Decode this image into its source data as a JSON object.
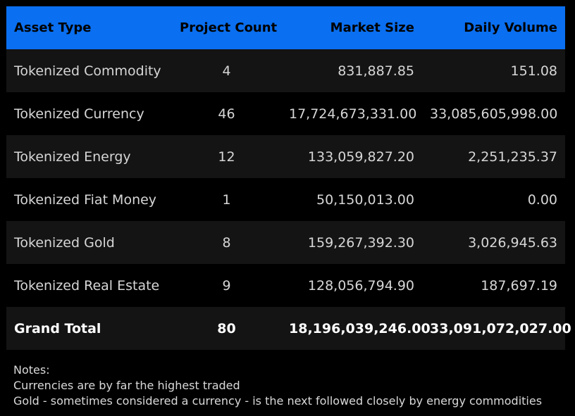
{
  "chart_data": {
    "type": "table",
    "columns": [
      "Asset Type",
      "Project Count",
      "Market Size",
      "Daily Volume"
    ],
    "rows": [
      {
        "asset_type": "Tokenized Commodity",
        "project_count": "4",
        "market_size": "831,887.85",
        "daily_volume": "151.08"
      },
      {
        "asset_type": "Tokenized Currency",
        "project_count": "46",
        "market_size": "17,724,673,331.00",
        "daily_volume": "33,085,605,998.00"
      },
      {
        "asset_type": "Tokenized Energy",
        "project_count": "12",
        "market_size": "133,059,827.20",
        "daily_volume": "2,251,235.37"
      },
      {
        "asset_type": "Tokenized Fiat Money",
        "project_count": "1",
        "market_size": "50,150,013.00",
        "daily_volume": "0.00"
      },
      {
        "asset_type": "Tokenized Gold",
        "project_count": "8",
        "market_size": "159,267,392.30",
        "daily_volume": "3,026,945.63"
      },
      {
        "asset_type": "Tokenized Real Estate",
        "project_count": "9",
        "market_size": "128,056,794.90",
        "daily_volume": "187,697.19"
      }
    ],
    "total": {
      "asset_type": "Grand Total",
      "project_count": "80",
      "market_size": "18,196,039,246.00",
      "daily_volume": "33,091,072,027.00"
    }
  },
  "notes": {
    "heading": "Notes:",
    "lines": [
      "Currencies are by far the highest traded",
      "Gold - sometimes considered a currency - is the next followed closely by energy commodities"
    ]
  },
  "colors": {
    "header_bg": "#0a6ff0",
    "header_text": "#000000",
    "row_dark": "#141414",
    "row_black": "#000000",
    "text": "#d6d6d6",
    "total_text": "#ffffff"
  }
}
